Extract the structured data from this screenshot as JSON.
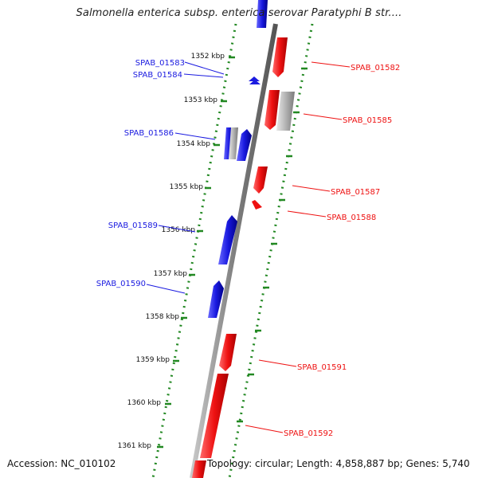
{
  "header": {
    "title": "Salmonella enterica subsp. enterica serovar Paratyphi B str...."
  },
  "footer": {
    "accession": "Accession: NC_010102",
    "summary": "Topology: circular; Length: 4,858,887 bp; Genes: 5,740"
  },
  "colors": {
    "forward_strand": "#ee1111",
    "reverse_strand": "#1a1ae0",
    "gray_feature": "#aaaaaa",
    "tick": "#228822",
    "backbone": "#888888"
  },
  "ticks": [
    {
      "label": "1352 kbp"
    },
    {
      "label": "1353 kbp"
    },
    {
      "label": "1354 kbp"
    },
    {
      "label": "1355 kbp"
    },
    {
      "label": "1356 kbp"
    },
    {
      "label": "1357 kbp"
    },
    {
      "label": "1358 kbp"
    },
    {
      "label": "1359 kbp"
    },
    {
      "label": "1360 kbp"
    },
    {
      "label": "1361 kbp"
    }
  ],
  "gene_labels": {
    "forward": [
      "SPAB_01582",
      "SPAB_01585",
      "SPAB_01587",
      "SPAB_01588",
      "SPAB_01591",
      "SPAB_01592"
    ],
    "reverse": [
      "SPAB_01583",
      "SPAB_01584",
      "SPAB_01586",
      "SPAB_01589",
      "SPAB_01590"
    ]
  }
}
